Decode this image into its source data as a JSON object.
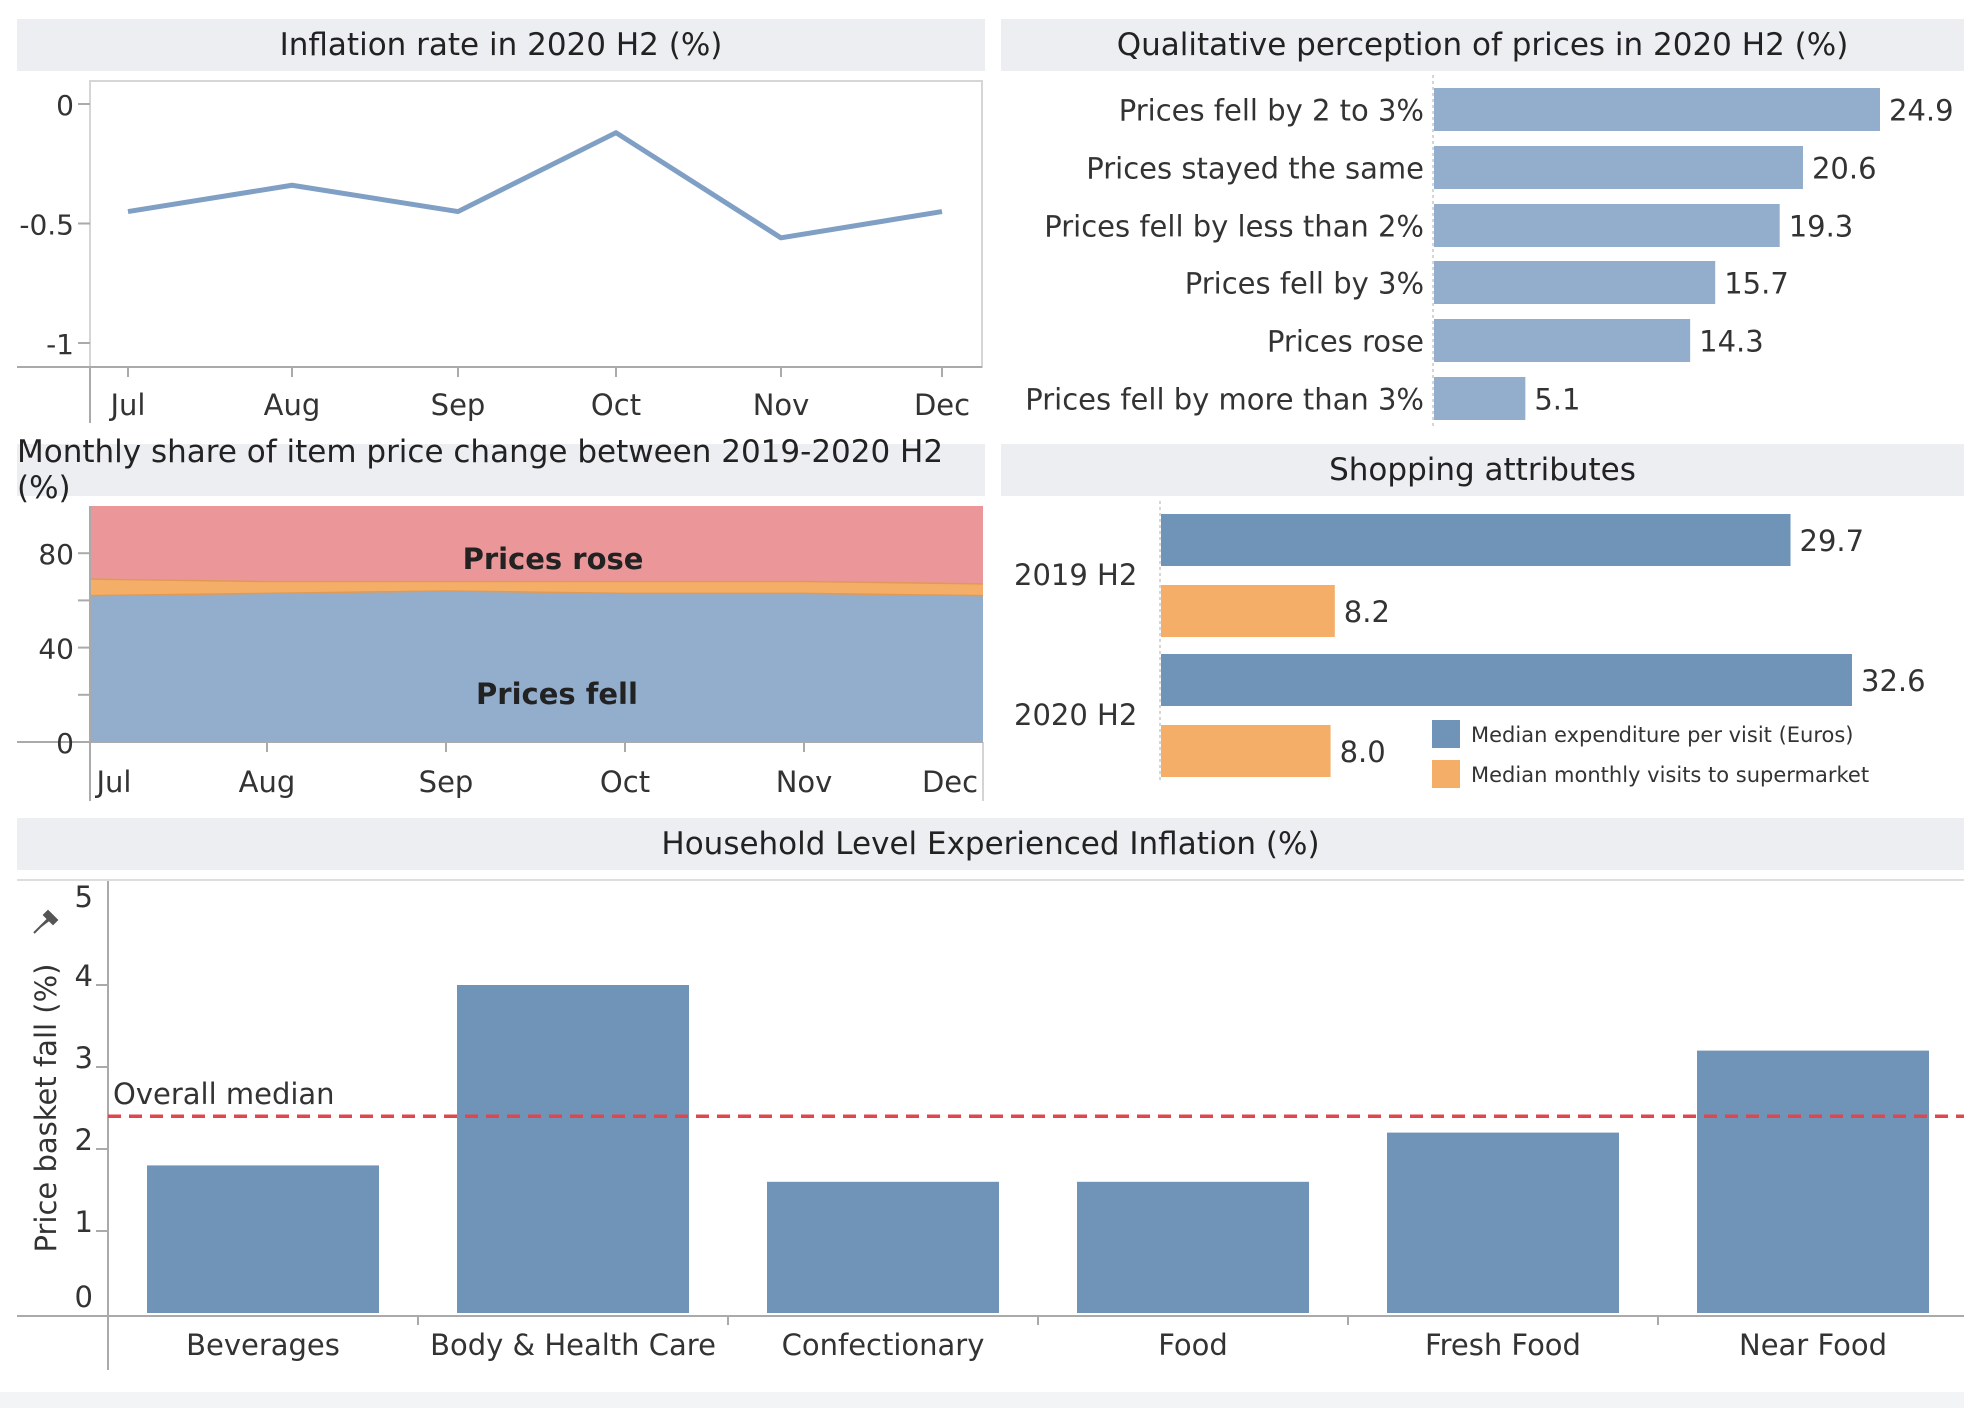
{
  "titles": {
    "inflation": "Inflation rate in 2020 H2 (%)",
    "perception": "Qualitative perception of prices in 2020 H2 (%)",
    "share": "Monthly share of item price change between 2019-2020 H2 (%)",
    "shopping": "Shopping attributes",
    "household": "Household Level Experienced Inflation (%)"
  },
  "colors": {
    "blue": "#7f9fc4",
    "bar_blue": "#93aecd",
    "dark_blue": "#7093b8",
    "orange": "#f4ae67",
    "red_area": "#eb979a",
    "median_line": "#e0474c"
  },
  "chart_data": [
    {
      "id": "inflation",
      "type": "line",
      "title": "Inflation rate in 2020 H2 (%)",
      "categories": [
        "Jul",
        "Aug",
        "Sep",
        "Oct",
        "Nov",
        "Dec"
      ],
      "values": [
        -0.45,
        -0.34,
        -0.45,
        -0.12,
        -0.56,
        -0.45
      ],
      "yticks": [
        "0",
        "-0.5",
        "-1"
      ],
      "ylim": [
        -1,
        0
      ]
    },
    {
      "id": "perception",
      "type": "bar",
      "orientation": "horizontal",
      "title": "Qualitative perception of prices in 2020 H2 (%)",
      "categories": [
        "Prices fell by 2 to 3%",
        "Prices stayed the same",
        "Prices fell by less than 2%",
        "Prices fell by 3%",
        "Prices rose",
        "Prices fell by more than 3%"
      ],
      "values": [
        24.9,
        20.6,
        19.3,
        15.7,
        14.3,
        5.1
      ],
      "value_labels": [
        "24.9",
        "20.6",
        "19.3",
        "15.7",
        "14.3",
        "5.1"
      ]
    },
    {
      "id": "share",
      "type": "area",
      "stacked": true,
      "title": "Monthly share of item price change between 2019-2020 H2 (%)",
      "categories": [
        "Jul",
        "Aug",
        "Sep",
        "Oct",
        "Nov",
        "Dec"
      ],
      "series": [
        {
          "name": "Prices fell",
          "values": [
            62,
            63,
            64,
            63,
            63,
            62
          ]
        },
        {
          "name": "",
          "values": [
            7,
            5,
            4,
            5,
            5,
            5
          ]
        },
        {
          "name": "Prices rose",
          "values": [
            31,
            32,
            32,
            32,
            32,
            33
          ]
        }
      ],
      "yticks": [
        "80",
        "40",
        "0"
      ],
      "ylim": [
        0,
        100
      ]
    },
    {
      "id": "shopping",
      "type": "bar",
      "orientation": "horizontal",
      "title": "Shopping attributes",
      "categories": [
        "2019 H2",
        "2020 H2"
      ],
      "series": [
        {
          "name": "Median expenditure per visit (Euros)",
          "values": [
            29.7,
            32.6
          ],
          "labels": [
            "29.7",
            "32.6"
          ]
        },
        {
          "name": "Median monthly visits to supermarket",
          "values": [
            8.2,
            8.0
          ],
          "labels": [
            "8.2",
            "8.0"
          ]
        }
      ],
      "legend": "bottom-right"
    },
    {
      "id": "household",
      "type": "bar",
      "title": "Household Level Experienced Inflation (%)",
      "ylabel": "Price basket fall (%)",
      "categories": [
        "Beverages",
        "Body & Health Care",
        "Confectionary",
        "Food",
        "Fresh Food",
        "Near Food"
      ],
      "values": [
        1.8,
        4.0,
        1.6,
        1.6,
        2.2,
        3.2
      ],
      "yticks": [
        "5",
        "4",
        "3",
        "2",
        "1",
        "0"
      ],
      "ylim": [
        0,
        5
      ],
      "reference_line": {
        "label": "Overall median",
        "value": 2.4
      }
    }
  ]
}
